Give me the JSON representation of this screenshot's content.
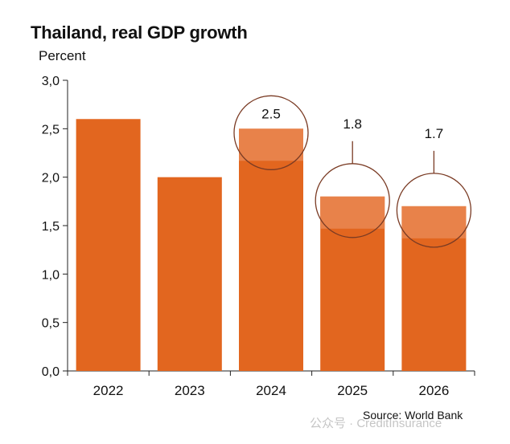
{
  "chart_data": {
    "type": "bar",
    "title": "Thailand, real GDP growth",
    "ylabel": "Percent",
    "xlabel": "",
    "categories": [
      "2022",
      "2023",
      "2024",
      "2025",
      "2026"
    ],
    "values": [
      2.6,
      2.0,
      2.5,
      1.8,
      1.7
    ],
    "ylim": [
      0,
      3.0
    ],
    "yticks": [
      "0,0",
      "0,5",
      "1,0",
      "1,5",
      "2,0",
      "2,5",
      "3,0"
    ],
    "annotations": [
      {
        "category": "2024",
        "label": "2.5"
      },
      {
        "category": "2025",
        "label": "1.8"
      },
      {
        "category": "2026",
        "label": "1.7"
      }
    ],
    "grid": false,
    "legend": "none",
    "colors": {
      "bar": "#e2661f",
      "highlight": "#e8824a",
      "circle": "#7a3b24"
    }
  },
  "source": "Source: World Bank",
  "watermark": "公众号 · CreditInsurance"
}
